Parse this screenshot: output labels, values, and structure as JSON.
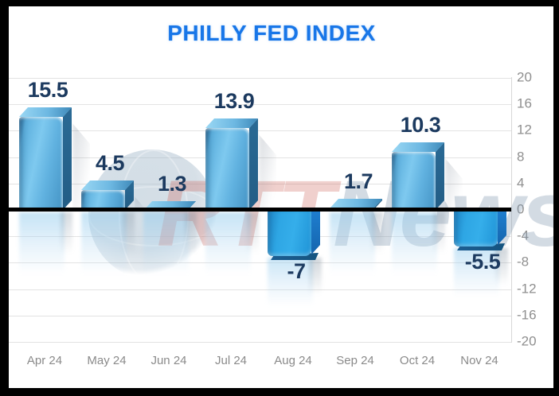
{
  "title": "PHILLY FED INDEX",
  "watermark": {
    "left": "RTT",
    "right": "News"
  },
  "colors": {
    "frame": "#000000",
    "plot_bg": "#ffffff",
    "title": "#1876e8",
    "data_label": "#1c3a5f",
    "y_axis_label": "#8f8f8f",
    "x_axis_label": "#8a8a8a",
    "grid": "#e3e3e3",
    "zero_line": "#000000",
    "bar_front_light": "#7ec9ef",
    "bar_front_dark": "#4493c4",
    "bar_top_light": "#9bd8f4",
    "bar_top_dark": "#3d88b8",
    "bar_side_dark": "#2a6a95",
    "neg_front_light": "#35aeea",
    "neg_front_dark": "#1f85c6",
    "neg_side_dark": "#1565ae",
    "neg_bottom": "#14537f"
  },
  "chart_data": {
    "type": "bar",
    "title": "PHILLY FED INDEX",
    "categories": [
      "Apr 24",
      "May 24",
      "Jun 24",
      "Jul 24",
      "Aug 24",
      "Sep 24",
      "Oct 24",
      "Nov 24"
    ],
    "values": [
      15.5,
      4.5,
      1.3,
      13.9,
      -7,
      1.7,
      10.3,
      -5.5
    ],
    "bar_labels": [
      "15.5",
      "4.5",
      "1.3",
      "13.9",
      "-7",
      "1.7",
      "10.3",
      "-5.5"
    ],
    "xlabel": "",
    "ylabel": "",
    "ylim": [
      -20,
      20
    ],
    "yticks": [
      20,
      16,
      12,
      8,
      4,
      0,
      -4,
      -8,
      -12,
      -16,
      -20
    ],
    "grid": true,
    "y_axis_side": "right",
    "zero_baseline_emphasized": true,
    "legend": "none",
    "style": "3d-glossy-blue-bars-with-reflections"
  }
}
